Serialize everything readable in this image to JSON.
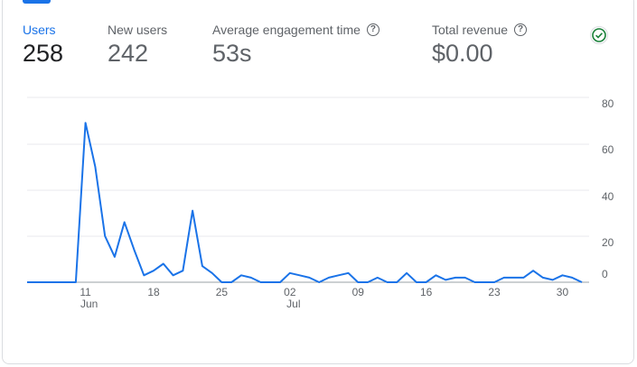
{
  "metrics": [
    {
      "label": "Users",
      "value": "258",
      "active": true,
      "help": false
    },
    {
      "label": "New users",
      "value": "242",
      "active": false,
      "help": false
    },
    {
      "label": "Average engagement time",
      "value": "53s",
      "active": false,
      "help": true
    },
    {
      "label": "Total revenue",
      "value": "$0.00",
      "active": false,
      "help": true
    }
  ],
  "status_icon": "check-circle-icon",
  "colors": {
    "accent": "#1a73e8",
    "grid": "#e8eaed",
    "text": "#5f6368",
    "check": "#188038"
  },
  "chart_data": {
    "type": "line",
    "title": "",
    "xlabel": "",
    "ylabel": "",
    "ylim": [
      0,
      80
    ],
    "y_ticks": [
      "80",
      "60",
      "40",
      "20",
      "0"
    ],
    "grid": true,
    "x_ticks": [
      {
        "day": 11,
        "label": "11",
        "sub": "Jun"
      },
      {
        "day": 18,
        "label": "18",
        "sub": ""
      },
      {
        "day": 25,
        "label": "25",
        "sub": ""
      },
      {
        "day": 32,
        "label": "02",
        "sub": "Jul"
      },
      {
        "day": 39,
        "label": "09",
        "sub": ""
      },
      {
        "day": 46,
        "label": "16",
        "sub": ""
      },
      {
        "day": 53,
        "label": "23",
        "sub": ""
      },
      {
        "day": 60,
        "label": "30",
        "sub": ""
      }
    ],
    "series": [
      {
        "name": "",
        "x": [
          5,
          6,
          7,
          8,
          9,
          10,
          11,
          12,
          13,
          14,
          15,
          16,
          17,
          18,
          19,
          20,
          21,
          22,
          23,
          24,
          25,
          26,
          27,
          28,
          29,
          30,
          31,
          32,
          33,
          34,
          35,
          36,
          37,
          38,
          39,
          40,
          41,
          42,
          43,
          44,
          45,
          46,
          47,
          48,
          49,
          50,
          51,
          52,
          53,
          54,
          55,
          56,
          57,
          58,
          59,
          60,
          61,
          62
        ],
        "values": [
          0,
          0,
          0,
          0,
          0,
          0,
          69,
          50,
          20,
          11,
          26,
          14,
          3,
          5,
          8,
          3,
          5,
          31,
          7,
          4,
          0,
          0,
          3,
          2,
          0,
          0,
          0,
          4,
          3,
          2,
          0,
          2,
          3,
          4,
          0,
          0,
          2,
          0,
          0,
          4,
          0,
          0,
          3,
          1,
          2,
          2,
          0,
          0,
          0,
          2,
          2,
          2,
          5,
          2,
          1,
          3,
          2,
          0
        ]
      }
    ]
  }
}
